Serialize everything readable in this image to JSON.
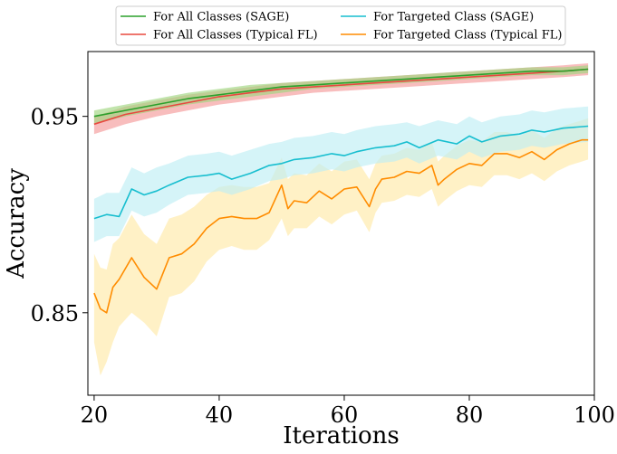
{
  "chart_data": {
    "type": "line",
    "title": "",
    "xlabel": "Iterations",
    "ylabel": "Accuracy",
    "xlim": [
      19,
      100
    ],
    "ylim": [
      0.808,
      0.983
    ],
    "xticks": [
      20,
      40,
      60,
      80,
      100
    ],
    "yticks": [
      0.85,
      0.95
    ],
    "ytick_labels": [
      "0.85",
      "0.95"
    ],
    "grid": false,
    "legend_position": "top (above plot), 2 columns",
    "series": [
      {
        "name": "For All Classes (SAGE)",
        "color": "#2ca02c",
        "band_color": "#9fd67f",
        "x": [
          20,
          25,
          30,
          35,
          40,
          45,
          50,
          55,
          60,
          65,
          70,
          75,
          80,
          85,
          90,
          95,
          99
        ],
        "y": [
          0.95,
          0.953,
          0.956,
          0.959,
          0.961,
          0.963,
          0.965,
          0.966,
          0.967,
          0.968,
          0.969,
          0.97,
          0.971,
          0.972,
          0.973,
          0.973,
          0.974
        ],
        "lower": [
          0.946,
          0.95,
          0.953,
          0.956,
          0.958,
          0.96,
          0.962,
          0.964,
          0.965,
          0.966,
          0.967,
          0.968,
          0.969,
          0.97,
          0.971,
          0.971,
          0.972
        ],
        "upper": [
          0.953,
          0.956,
          0.959,
          0.962,
          0.964,
          0.966,
          0.967,
          0.968,
          0.969,
          0.97,
          0.971,
          0.972,
          0.973,
          0.974,
          0.975,
          0.975,
          0.976
        ]
      },
      {
        "name": "For All Classes (Typical FL)",
        "color": "#e8483f",
        "band_color": "#f49a9a",
        "x": [
          20,
          25,
          30,
          35,
          40,
          45,
          50,
          55,
          60,
          65,
          70,
          75,
          80,
          85,
          90,
          95,
          99
        ],
        "y": [
          0.946,
          0.951,
          0.954,
          0.957,
          0.96,
          0.962,
          0.964,
          0.965,
          0.966,
          0.967,
          0.968,
          0.969,
          0.97,
          0.971,
          0.972,
          0.973,
          0.974
        ],
        "lower": [
          0.941,
          0.946,
          0.95,
          0.953,
          0.956,
          0.958,
          0.96,
          0.962,
          0.963,
          0.964,
          0.965,
          0.966,
          0.967,
          0.968,
          0.969,
          0.97,
          0.971
        ],
        "upper": [
          0.95,
          0.955,
          0.958,
          0.961,
          0.963,
          0.965,
          0.967,
          0.968,
          0.969,
          0.97,
          0.971,
          0.972,
          0.973,
          0.974,
          0.975,
          0.976,
          0.977
        ]
      },
      {
        "name": "For Targeted Class (SAGE)",
        "color": "#17becf",
        "band_color": "#bfeef5",
        "x": [
          20,
          22,
          24,
          26,
          28,
          30,
          32,
          35,
          38,
          40,
          42,
          45,
          48,
          50,
          52,
          55,
          58,
          60,
          62,
          65,
          68,
          70,
          72,
          75,
          78,
          80,
          82,
          85,
          88,
          90,
          92,
          95,
          99
        ],
        "y": [
          0.898,
          0.9,
          0.899,
          0.913,
          0.91,
          0.912,
          0.915,
          0.919,
          0.92,
          0.921,
          0.918,
          0.921,
          0.925,
          0.926,
          0.928,
          0.929,
          0.931,
          0.93,
          0.932,
          0.934,
          0.935,
          0.937,
          0.934,
          0.938,
          0.936,
          0.94,
          0.937,
          0.94,
          0.941,
          0.943,
          0.942,
          0.944,
          0.945
        ],
        "lower": [
          0.886,
          0.889,
          0.889,
          0.902,
          0.899,
          0.901,
          0.905,
          0.91,
          0.911,
          0.912,
          0.91,
          0.913,
          0.917,
          0.918,
          0.92,
          0.921,
          0.923,
          0.922,
          0.924,
          0.926,
          0.927,
          0.929,
          0.926,
          0.93,
          0.928,
          0.932,
          0.929,
          0.932,
          0.933,
          0.935,
          0.934,
          0.936,
          0.937
        ],
        "upper": [
          0.908,
          0.911,
          0.911,
          0.924,
          0.921,
          0.924,
          0.926,
          0.93,
          0.931,
          0.932,
          0.93,
          0.933,
          0.936,
          0.937,
          0.939,
          0.94,
          0.942,
          0.941,
          0.943,
          0.945,
          0.946,
          0.947,
          0.945,
          0.948,
          0.946,
          0.95,
          0.947,
          0.95,
          0.951,
          0.953,
          0.952,
          0.954,
          0.955
        ]
      },
      {
        "name": "For Targeted Class (Typical FL)",
        "color": "#ff8c00",
        "band_color": "#ffe9a8",
        "x": [
          20,
          21,
          22,
          23,
          24,
          26,
          28,
          30,
          32,
          34,
          36,
          38,
          40,
          42,
          44,
          46,
          48,
          50,
          51,
          52,
          54,
          56,
          58,
          60,
          62,
          64,
          65,
          66,
          68,
          70,
          72,
          74,
          75,
          76,
          78,
          80,
          82,
          84,
          86,
          88,
          90,
          92,
          94,
          96,
          98,
          99
        ],
        "y": [
          0.86,
          0.852,
          0.85,
          0.863,
          0.867,
          0.878,
          0.868,
          0.862,
          0.878,
          0.88,
          0.885,
          0.893,
          0.898,
          0.899,
          0.898,
          0.898,
          0.901,
          0.915,
          0.903,
          0.907,
          0.906,
          0.912,
          0.908,
          0.913,
          0.914,
          0.904,
          0.913,
          0.918,
          0.919,
          0.922,
          0.921,
          0.925,
          0.915,
          0.918,
          0.923,
          0.926,
          0.925,
          0.931,
          0.931,
          0.929,
          0.932,
          0.928,
          0.933,
          0.936,
          0.938,
          0.938
        ],
        "lower": [
          0.835,
          0.818,
          0.825,
          0.835,
          0.843,
          0.85,
          0.845,
          0.838,
          0.858,
          0.86,
          0.866,
          0.876,
          0.882,
          0.884,
          0.882,
          0.882,
          0.887,
          0.898,
          0.889,
          0.893,
          0.893,
          0.899,
          0.895,
          0.9,
          0.902,
          0.891,
          0.901,
          0.906,
          0.907,
          0.91,
          0.909,
          0.913,
          0.904,
          0.907,
          0.912,
          0.915,
          0.914,
          0.92,
          0.92,
          0.918,
          0.921,
          0.917,
          0.922,
          0.925,
          0.927,
          0.928
        ],
        "upper": [
          0.88,
          0.873,
          0.872,
          0.885,
          0.888,
          0.9,
          0.89,
          0.885,
          0.898,
          0.9,
          0.904,
          0.91,
          0.914,
          0.915,
          0.914,
          0.914,
          0.916,
          0.929,
          0.918,
          0.921,
          0.92,
          0.926,
          0.922,
          0.927,
          0.928,
          0.918,
          0.926,
          0.93,
          0.931,
          0.934,
          0.933,
          0.937,
          0.927,
          0.93,
          0.935,
          0.938,
          0.937,
          0.942,
          0.942,
          0.94,
          0.943,
          0.939,
          0.944,
          0.946,
          0.948,
          0.949
        ]
      }
    ]
  }
}
